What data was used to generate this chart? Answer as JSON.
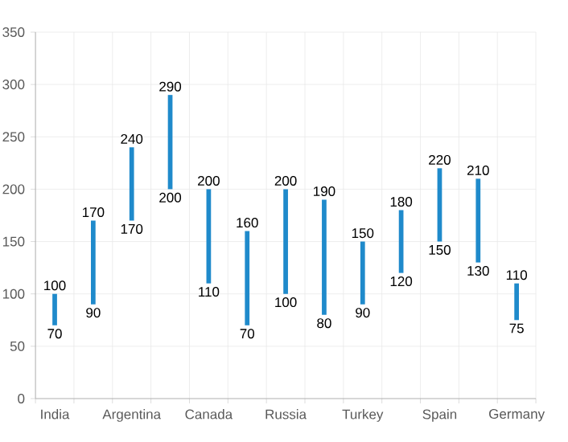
{
  "chart_data": {
    "type": "bar",
    "categories": [
      "India",
      null,
      "Argentina",
      null,
      "Canada",
      null,
      "Russia",
      null,
      "Turkey",
      null,
      "Spain",
      null,
      "Germany"
    ],
    "base": [
      70,
      90,
      170,
      200,
      110,
      70,
      100,
      80,
      90,
      120,
      150,
      130,
      75
    ],
    "values": [
      30,
      80,
      70,
      90,
      90,
      90,
      100,
      110,
      60,
      60,
      70,
      80,
      35
    ],
    "color": "#1f8acb",
    "ylim": [
      0,
      350
    ],
    "yticks": [
      0,
      50,
      100,
      150,
      200,
      250,
      300,
      350
    ],
    "grid": true,
    "annotations": [
      {
        "text": "100",
        "y": 100
      },
      {
        "text": "70",
        "y": 70
      },
      {
        "text": "170",
        "y": 170
      },
      {
        "text": "90",
        "y": 90
      },
      {
        "text": "240",
        "y": 240
      },
      {
        "text": "170",
        "y": 170
      },
      {
        "text": "290",
        "y": 290
      },
      {
        "text": "200",
        "y": 200
      },
      {
        "text": "200",
        "y": 200
      },
      {
        "text": "110",
        "y": 110
      },
      {
        "text": "160",
        "y": 160
      },
      {
        "text": "70",
        "y": 70
      },
      {
        "text": "200",
        "y": 200
      },
      {
        "text": "100",
        "y": 100
      },
      {
        "text": "190",
        "y": 190
      },
      {
        "text": "80",
        "y": 80
      },
      {
        "text": "150",
        "y": 150
      },
      {
        "text": "90",
        "y": 90
      },
      {
        "text": "180",
        "y": 180
      },
      {
        "text": "120",
        "y": 120
      },
      {
        "text": "220",
        "y": 220
      },
      {
        "text": "150",
        "y": 150
      },
      {
        "text": "210",
        "y": 210
      },
      {
        "text": "130",
        "y": 130
      },
      {
        "text": "110",
        "y": 110
      },
      {
        "text": "75",
        "y": 75
      }
    ]
  }
}
